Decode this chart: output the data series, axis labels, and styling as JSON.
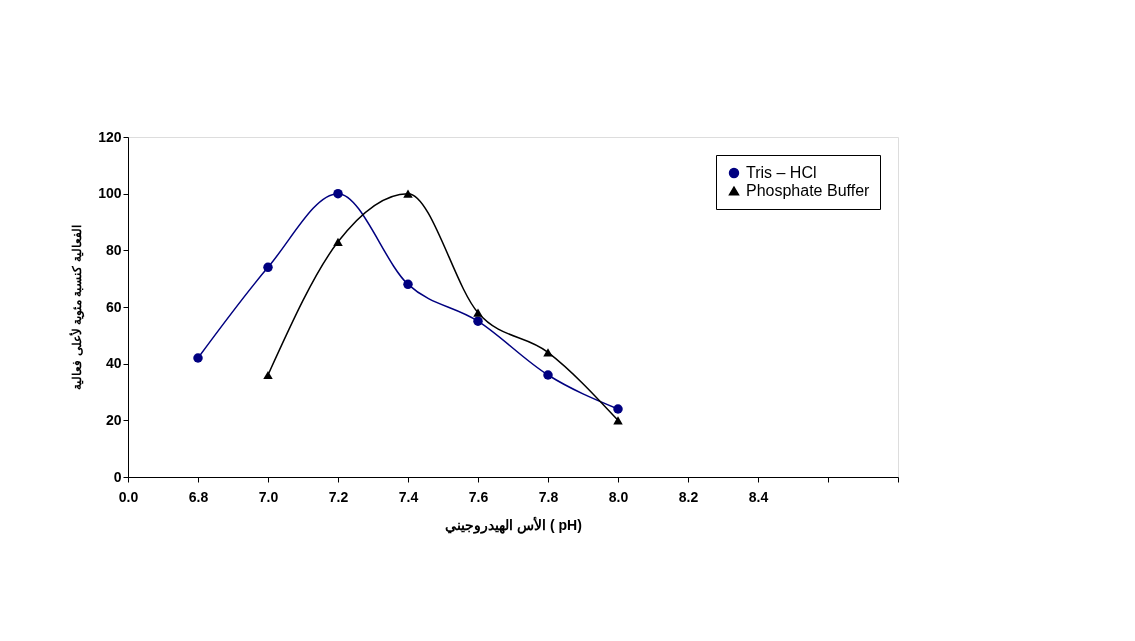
{
  "chart_data": {
    "type": "line",
    "xlabel": "الأس الهيدروجيني ( pH)",
    "ylabel": "الفعالية كنسبة مئوية لأعلى فعالية",
    "categories": [
      "0.0",
      "6.8",
      "7.0",
      "7.2",
      "7.4",
      "7.6",
      "7.8",
      "8.0",
      "8.2",
      "8.4",
      null,
      null
    ],
    "series": [
      {
        "name": "Tris – HCl",
        "color": "#000080",
        "marker": "circle",
        "values": [
          null,
          42,
          74,
          100,
          68,
          55,
          36,
          24,
          null,
          null,
          null,
          null
        ]
      },
      {
        "name": "Phosphate Buffer",
        "color": "#000000",
        "marker": "triangle",
        "values": [
          null,
          null,
          36,
          83,
          100,
          58,
          44,
          20,
          null,
          null,
          null,
          null
        ]
      }
    ],
    "ylim": [
      0,
      120
    ],
    "yticks": [
      0,
      20,
      40,
      60,
      80,
      100,
      120
    ],
    "grid": false,
    "legend": "top right",
    "line_style": "solid"
  }
}
